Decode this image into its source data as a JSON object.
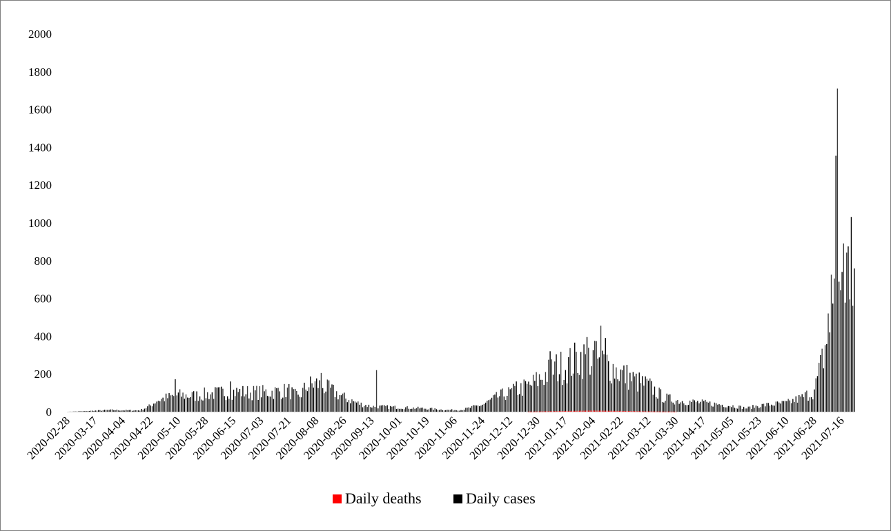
{
  "chart_data": {
    "type": "bar",
    "title": "",
    "xlabel": "",
    "ylabel": "",
    "ylim": [
      0,
      2000
    ],
    "yticks": [
      "0",
      "200",
      "400",
      "600",
      "800",
      "1000",
      "1200",
      "1400",
      "1600",
      "1800",
      "2000"
    ],
    "x_tick_labels": [
      "2020-02-28",
      "2020-03-17",
      "2020-04-04",
      "2020-04-22",
      "2020-05-10",
      "2020-05-28",
      "2020-06-15",
      "2020-07-03",
      "2020-07-21",
      "2020-08-08",
      "2020-08-26",
      "2020-09-13",
      "2020-10-01",
      "2020-10-19",
      "2020-11-06",
      "2020-11-24",
      "2020-12-12",
      "2020-12-30",
      "2021-01-17",
      "2021-02-04",
      "2021-02-22",
      "2021-03-12",
      "2021-03-30",
      "2021-04-17",
      "2021-05-05",
      "2021-05-23",
      "2021-06-10",
      "2021-06-28",
      "2021-07-16"
    ],
    "x_start": "2020-02-28",
    "x_end": "2021-07-24",
    "legend_position": "bottom",
    "grid": false,
    "series": [
      {
        "name": "Daily deaths",
        "color": "#ff0000",
        "keypoints": [
          [
            "2020-02-28",
            0
          ],
          [
            "2020-12-20",
            0
          ],
          [
            "2021-01-10",
            3
          ],
          [
            "2021-02-04",
            6
          ],
          [
            "2021-02-22",
            4
          ],
          [
            "2021-03-20",
            1
          ],
          [
            "2021-04-10",
            0
          ],
          [
            "2021-07-24",
            0
          ]
        ]
      },
      {
        "name": "Daily cases",
        "color": "#000000",
        "keypoints": [
          [
            "2020-02-28",
            0
          ],
          [
            "2020-03-10",
            3
          ],
          [
            "2020-03-17",
            6
          ],
          [
            "2020-03-28",
            10
          ],
          [
            "2020-04-04",
            8
          ],
          [
            "2020-04-15",
            8
          ],
          [
            "2020-04-22",
            35
          ],
          [
            "2020-04-26",
            65
          ],
          [
            "2020-05-03",
            80
          ],
          [
            "2020-05-10",
            95
          ],
          [
            "2020-05-20",
            90
          ],
          [
            "2020-05-28",
            100
          ],
          [
            "2020-06-10",
            110
          ],
          [
            "2020-06-15",
            115
          ],
          [
            "2020-06-25",
            110
          ],
          [
            "2020-07-03",
            110
          ],
          [
            "2020-07-21",
            120
          ],
          [
            "2020-07-27",
            80
          ],
          [
            "2020-08-02",
            150
          ],
          [
            "2020-08-08",
            160
          ],
          [
            "2020-08-18",
            120
          ],
          [
            "2020-08-26",
            80
          ],
          [
            "2020-09-05",
            45
          ],
          [
            "2020-09-13",
            30
          ],
          [
            "2020-10-01",
            25
          ],
          [
            "2020-10-19",
            18
          ],
          [
            "2020-11-01",
            10
          ],
          [
            "2020-11-10",
            10
          ],
          [
            "2020-11-24",
            40
          ],
          [
            "2020-12-05",
            90
          ],
          [
            "2020-12-12",
            110
          ],
          [
            "2020-12-25",
            150
          ],
          [
            "2020-12-30",
            180
          ],
          [
            "2021-01-10",
            250
          ],
          [
            "2021-01-17",
            260
          ],
          [
            "2021-01-27",
            310
          ],
          [
            "2021-02-04",
            300
          ],
          [
            "2021-02-12",
            280
          ],
          [
            "2021-02-22",
            220
          ],
          [
            "2021-03-05",
            170
          ],
          [
            "2021-03-12",
            150
          ],
          [
            "2021-03-22",
            80
          ],
          [
            "2021-03-30",
            65
          ],
          [
            "2021-04-17",
            50
          ],
          [
            "2021-05-05",
            35
          ],
          [
            "2021-05-15",
            20
          ],
          [
            "2021-05-23",
            35
          ],
          [
            "2021-06-10",
            50
          ],
          [
            "2021-06-20",
            80
          ],
          [
            "2021-06-28",
            120
          ],
          [
            "2021-07-02",
            250
          ],
          [
            "2021-07-06",
            400
          ],
          [
            "2021-07-10",
            600
          ],
          [
            "2021-07-16",
            800
          ],
          [
            "2021-07-24",
            750
          ]
        ],
        "peaks": [
          [
            "2020-05-08",
            172
          ],
          [
            "2020-06-13",
            160
          ],
          [
            "2020-08-11",
            205
          ],
          [
            "2020-09-16",
            220
          ],
          [
            "2020-12-16",
            160
          ],
          [
            "2021-01-07",
            320
          ],
          [
            "2021-01-31",
            395
          ],
          [
            "2021-02-05",
            375
          ],
          [
            "2021-02-09",
            455
          ],
          [
            "2021-02-12",
            390
          ],
          [
            "2021-07-07",
            520
          ],
          [
            "2021-07-09",
            725
          ],
          [
            "2021-07-12",
            1355
          ],
          [
            "2021-07-13",
            1710
          ],
          [
            "2021-07-17",
            890
          ],
          [
            "2021-07-22",
            1030
          ]
        ]
      }
    ]
  }
}
